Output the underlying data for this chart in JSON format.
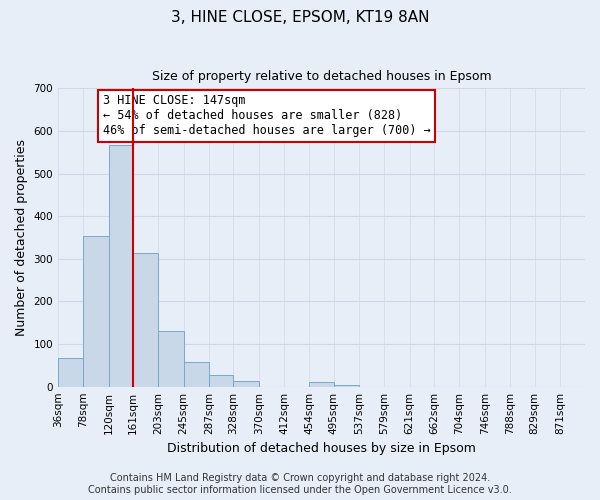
{
  "title": "3, HINE CLOSE, EPSOM, KT19 8AN",
  "subtitle": "Size of property relative to detached houses in Epsom",
  "xlabel": "Distribution of detached houses by size in Epsom",
  "ylabel": "Number of detached properties",
  "bin_labels": [
    "36sqm",
    "78sqm",
    "120sqm",
    "161sqm",
    "203sqm",
    "245sqm",
    "287sqm",
    "328sqm",
    "370sqm",
    "412sqm",
    "454sqm",
    "495sqm",
    "537sqm",
    "579sqm",
    "621sqm",
    "662sqm",
    "704sqm",
    "746sqm",
    "788sqm",
    "829sqm",
    "871sqm"
  ],
  "bar_values": [
    68,
    353,
    568,
    313,
    130,
    57,
    27,
    13,
    0,
    0,
    10,
    4,
    0,
    0,
    0,
    0,
    0,
    0,
    0,
    0,
    0
  ],
  "bar_color": "#c8d8e8",
  "bar_edge_color": "#7aaac8",
  "bin_edges": [
    36,
    78,
    120,
    161,
    203,
    245,
    287,
    328,
    370,
    412,
    454,
    495,
    537,
    579,
    621,
    662,
    704,
    746,
    788,
    829,
    871
  ],
  "annotation_text": "3 HINE CLOSE: 147sqm\n← 54% of detached houses are smaller (828)\n46% of semi-detached houses are larger (700) →",
  "annotation_box_color": "#ffffff",
  "annotation_box_edge_color": "#cc0000",
  "ylim": [
    0,
    700
  ],
  "yticks": [
    0,
    100,
    200,
    300,
    400,
    500,
    600,
    700
  ],
  "grid_color": "#d0d8e8",
  "background_color": "#e8eef8",
  "footer_text": "Contains HM Land Registry data © Crown copyright and database right 2024.\nContains public sector information licensed under the Open Government Licence v3.0.",
  "vline_color": "#cc0000",
  "title_fontsize": 11,
  "subtitle_fontsize": 9,
  "axis_label_fontsize": 9,
  "tick_fontsize": 7.5,
  "annotation_fontsize": 8.5,
  "footer_fontsize": 7
}
